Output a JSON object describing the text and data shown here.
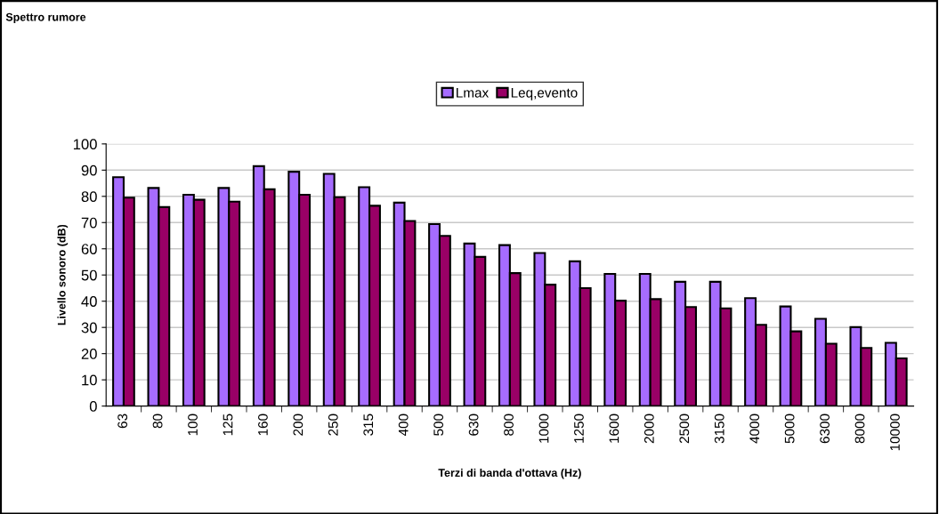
{
  "chart_data": {
    "type": "bar",
    "title": "Spettro rumore",
    "xlabel": "Terzi di banda d'ottava (Hz)",
    "ylabel": "Livello sonoro (dB)",
    "categories": [
      "63",
      "80",
      "100",
      "125",
      "160",
      "200",
      "250",
      "315",
      "400",
      "500",
      "630",
      "800",
      "1000",
      "1250",
      "1600",
      "2000",
      "2500",
      "3150",
      "4000",
      "5000",
      "6300",
      "8000",
      "10000"
    ],
    "series": [
      {
        "name": "Lmax",
        "color": "#a66cff",
        "values": [
          87.3,
          83.2,
          80.6,
          83.2,
          91.5,
          89.4,
          88.6,
          83.5,
          77.6,
          69.4,
          62,
          61.4,
          58.4,
          55.2,
          50.4,
          50.4,
          47.4,
          47.4,
          41.2,
          38,
          33.3,
          30.1,
          24.1
        ]
      },
      {
        "name": "Leq,evento",
        "color": "#990066",
        "values": [
          79.5,
          75.9,
          78.7,
          78,
          82.7,
          80.6,
          79.7,
          76.4,
          70.6,
          64.9,
          56.9,
          50.7,
          46.3,
          45,
          40.2,
          40.8,
          37.8,
          37.3,
          31,
          28.5,
          23.8,
          22.2,
          18.2
        ]
      }
    ],
    "ylim": [
      0,
      100
    ],
    "yticks": [
      0,
      10,
      20,
      30,
      40,
      50,
      60,
      70,
      80,
      90,
      100
    ],
    "grid": "y",
    "legend": "top"
  }
}
